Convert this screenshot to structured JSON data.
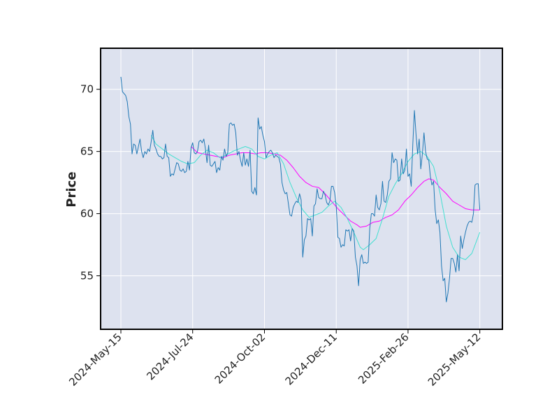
{
  "chart_data": {
    "type": "line",
    "title": "",
    "xlabel": "",
    "ylabel": "Price",
    "x_tick_labels": [
      "2024-May-15",
      "2024-Jul-24",
      "2024-Oct-02",
      "2024-Dec-11",
      "2025-Feb-26",
      "2025-May-12"
    ],
    "y_ticks": [
      55,
      60,
      65,
      70
    ],
    "ylim": [
      50.7,
      73.3
    ],
    "grid": true,
    "legend": "none",
    "colors": {
      "background": "#dde2ef",
      "grid": "#ffffff",
      "price": "#1f77b4",
      "ma_short": "#40e0d0",
      "ma_long": "#ff00ff"
    },
    "series": [
      {
        "key": "price",
        "values": [
          [
            0,
            71.0
          ],
          [
            1,
            69.8
          ],
          [
            3,
            69.5
          ],
          [
            4,
            69.0
          ],
          [
            5,
            67.8
          ],
          [
            6,
            67.2
          ],
          [
            7,
            64.8
          ],
          [
            8,
            65.6
          ],
          [
            9,
            65.5
          ],
          [
            10,
            64.8
          ],
          [
            11,
            65.4
          ],
          [
            12,
            66.0
          ],
          [
            13,
            65.0
          ],
          [
            14,
            64.5
          ],
          [
            15,
            65.0
          ],
          [
            16,
            64.8
          ],
          [
            17,
            65.2
          ],
          [
            18,
            65.0
          ],
          [
            19,
            65.8
          ],
          [
            20,
            66.7
          ],
          [
            21,
            65.5
          ],
          [
            22,
            65.2
          ],
          [
            23,
            64.8
          ],
          [
            24,
            64.6
          ],
          [
            25,
            64.6
          ],
          [
            26,
            64.4
          ],
          [
            27,
            64.5
          ],
          [
            28,
            65.6
          ],
          [
            29,
            64.6
          ],
          [
            30,
            64.5
          ],
          [
            31,
            63.0
          ],
          [
            32,
            63.2
          ],
          [
            33,
            63.1
          ],
          [
            34,
            63.6
          ],
          [
            35,
            64.1
          ],
          [
            36,
            64.0
          ],
          [
            37,
            63.5
          ],
          [
            38,
            63.4
          ],
          [
            39,
            63.6
          ],
          [
            40,
            63.3
          ],
          [
            41,
            63.4
          ],
          [
            42,
            64.2
          ],
          [
            43,
            63.5
          ],
          [
            44,
            65.3
          ],
          [
            45,
            65.7
          ],
          [
            46,
            64.9
          ],
          [
            47,
            64.8
          ],
          [
            48,
            65.0
          ],
          [
            49,
            65.8
          ],
          [
            50,
            65.9
          ],
          [
            51,
            65.7
          ],
          [
            52,
            66.0
          ],
          [
            53,
            65.2
          ],
          [
            54,
            64.1
          ],
          [
            55,
            65.5
          ],
          [
            56,
            63.9
          ],
          [
            57,
            63.8
          ],
          [
            58,
            64.0
          ],
          [
            59,
            64.2
          ],
          [
            60,
            63.3
          ],
          [
            61,
            63.7
          ],
          [
            62,
            63.5
          ],
          [
            63,
            64.6
          ],
          [
            64,
            64.3
          ],
          [
            65,
            65.2
          ],
          [
            66,
            64.6
          ],
          [
            67,
            64.9
          ],
          [
            68,
            67.2
          ],
          [
            69,
            67.3
          ],
          [
            70,
            67.1
          ],
          [
            71,
            67.2
          ],
          [
            72,
            66.5
          ],
          [
            73,
            64.7
          ],
          [
            74,
            65.0
          ],
          [
            75,
            64.3
          ],
          [
            76,
            63.8
          ],
          [
            77,
            64.9
          ],
          [
            78,
            63.9
          ],
          [
            79,
            64.4
          ],
          [
            80,
            63.8
          ],
          [
            81,
            65.1
          ],
          [
            82,
            61.8
          ],
          [
            83,
            61.6
          ],
          [
            84,
            62.1
          ],
          [
            85,
            61.5
          ],
          [
            86,
            67.7
          ],
          [
            87,
            66.8
          ],
          [
            88,
            67.0
          ],
          [
            89,
            66.3
          ],
          [
            90,
            65.8
          ],
          [
            91,
            64.5
          ],
          [
            92,
            64.8
          ],
          [
            93,
            65.0
          ],
          [
            94,
            65.1
          ],
          [
            95,
            64.9
          ],
          [
            96,
            64.5
          ],
          [
            97,
            64.7
          ],
          [
            98,
            64.6
          ],
          [
            99,
            64.5
          ],
          [
            100,
            64.0
          ],
          [
            101,
            62.5
          ],
          [
            102,
            61.9
          ],
          [
            103,
            61.6
          ],
          [
            104,
            61.7
          ],
          [
            105,
            60.8
          ],
          [
            106,
            59.9
          ],
          [
            107,
            59.8
          ],
          [
            108,
            60.5
          ],
          [
            109,
            60.8
          ],
          [
            110,
            61.0
          ],
          [
            111,
            60.9
          ],
          [
            112,
            61.6
          ],
          [
            113,
            61.1
          ],
          [
            114,
            56.5
          ],
          [
            115,
            57.9
          ],
          [
            116,
            58.2
          ],
          [
            117,
            59.6
          ],
          [
            118,
            59.5
          ],
          [
            119,
            59.6
          ],
          [
            120,
            58.2
          ],
          [
            121,
            60.6
          ],
          [
            122,
            60.8
          ],
          [
            123,
            62.0
          ],
          [
            124,
            61.3
          ],
          [
            125,
            61.2
          ],
          [
            126,
            61.2
          ],
          [
            127,
            61.8
          ],
          [
            128,
            61.5
          ],
          [
            129,
            60.9
          ],
          [
            130,
            60.7
          ],
          [
            131,
            61.0
          ],
          [
            132,
            62.2
          ],
          [
            133,
            62.2
          ],
          [
            134,
            61.7
          ],
          [
            135,
            60.6
          ],
          [
            136,
            58.1
          ],
          [
            137,
            58.0
          ],
          [
            138,
            57.3
          ],
          [
            139,
            57.5
          ],
          [
            140,
            57.4
          ],
          [
            141,
            58.7
          ],
          [
            142,
            58.6
          ],
          [
            143,
            58.7
          ],
          [
            144,
            57.8
          ],
          [
            145,
            58.8
          ],
          [
            146,
            58.6
          ],
          [
            147,
            56.5
          ],
          [
            148,
            55.8
          ],
          [
            149,
            54.2
          ],
          [
            150,
            56.3
          ],
          [
            151,
            56.7
          ],
          [
            152,
            56.0
          ],
          [
            153,
            56.1
          ],
          [
            154,
            56.0
          ],
          [
            155,
            56.1
          ],
          [
            156,
            58.8
          ],
          [
            157,
            60.0
          ],
          [
            158,
            60.0
          ],
          [
            159,
            59.8
          ],
          [
            160,
            61.5
          ],
          [
            161,
            60.5
          ],
          [
            162,
            60.3
          ],
          [
            163,
            60.8
          ],
          [
            164,
            62.6
          ],
          [
            165,
            61.0
          ],
          [
            166,
            60.9
          ],
          [
            167,
            61.5
          ],
          [
            168,
            62.6
          ],
          [
            169,
            62.8
          ],
          [
            170,
            64.9
          ],
          [
            171,
            64.1
          ],
          [
            172,
            64.4
          ],
          [
            173,
            64.3
          ],
          [
            174,
            62.6
          ],
          [
            175,
            62.7
          ],
          [
            176,
            64.4
          ],
          [
            177,
            63.2
          ],
          [
            178,
            63.5
          ],
          [
            179,
            65.2
          ],
          [
            180,
            63.0
          ],
          [
            181,
            63.2
          ],
          [
            182,
            62.2
          ],
          [
            183,
            65.6
          ],
          [
            184,
            68.3
          ],
          [
            185,
            66.4
          ],
          [
            186,
            64.8
          ],
          [
            187,
            66.0
          ],
          [
            188,
            63.6
          ],
          [
            189,
            64.8
          ],
          [
            190,
            66.5
          ],
          [
            191,
            65.0
          ],
          [
            192,
            64.4
          ],
          [
            193,
            64.3
          ],
          [
            194,
            63.0
          ],
          [
            195,
            62.3
          ],
          [
            196,
            62.6
          ],
          [
            197,
            60.3
          ],
          [
            198,
            59.2
          ],
          [
            199,
            59.5
          ],
          [
            200,
            58.5
          ],
          [
            201,
            55.8
          ],
          [
            202,
            54.6
          ],
          [
            203,
            54.8
          ],
          [
            204,
            52.9
          ],
          [
            205,
            53.6
          ],
          [
            206,
            54.8
          ],
          [
            207,
            56.4
          ],
          [
            208,
            56.4
          ],
          [
            209,
            56.0
          ],
          [
            210,
            55.3
          ],
          [
            211,
            56.7
          ],
          [
            212,
            55.4
          ],
          [
            213,
            58.2
          ],
          [
            214,
            57.2
          ],
          [
            215,
            57.9
          ],
          [
            216,
            58.5
          ],
          [
            217,
            59.0
          ],
          [
            218,
            59.3
          ],
          [
            219,
            59.4
          ],
          [
            220,
            59.3
          ],
          [
            221,
            60.0
          ],
          [
            222,
            62.3
          ],
          [
            223,
            62.4
          ],
          [
            224,
            62.4
          ],
          [
            225,
            60.3
          ]
        ]
      },
      {
        "key": "ma_short",
        "values": [
          [
            19,
            66.3
          ],
          [
            22,
            65.6
          ],
          [
            26,
            65.2
          ],
          [
            30,
            64.8
          ],
          [
            34,
            64.5
          ],
          [
            38,
            64.2
          ],
          [
            42,
            64.0
          ],
          [
            46,
            64.1
          ],
          [
            50,
            64.7
          ],
          [
            54,
            65.1
          ],
          [
            58,
            64.9
          ],
          [
            62,
            64.5
          ],
          [
            66,
            64.7
          ],
          [
            70,
            65.0
          ],
          [
            74,
            65.2
          ],
          [
            78,
            65.4
          ],
          [
            82,
            65.2
          ],
          [
            86,
            64.6
          ],
          [
            90,
            64.4
          ],
          [
            94,
            64.7
          ],
          [
            98,
            64.9
          ],
          [
            102,
            64.0
          ],
          [
            106,
            62.5
          ],
          [
            110,
            61.3
          ],
          [
            114,
            60.3
          ],
          [
            118,
            59.7
          ],
          [
            122,
            59.9
          ],
          [
            126,
            60.1
          ],
          [
            130,
            60.6
          ],
          [
            134,
            61.0
          ],
          [
            138,
            60.5
          ],
          [
            142,
            59.6
          ],
          [
            146,
            58.5
          ],
          [
            150,
            57.3
          ],
          [
            152,
            57.1
          ],
          [
            156,
            57.5
          ],
          [
            160,
            58.0
          ],
          [
            164,
            59.6
          ],
          [
            168,
            61.4
          ],
          [
            172,
            62.4
          ],
          [
            176,
            63.2
          ],
          [
            180,
            64.2
          ],
          [
            184,
            64.8
          ],
          [
            188,
            65.0
          ],
          [
            192,
            64.6
          ],
          [
            196,
            63.8
          ],
          [
            200,
            61.7
          ],
          [
            204,
            59.0
          ],
          [
            208,
            57.3
          ],
          [
            212,
            56.5
          ],
          [
            216,
            56.3
          ],
          [
            220,
            56.8
          ],
          [
            225,
            58.5
          ]
        ]
      },
      {
        "key": "ma_long",
        "values": [
          [
            44,
            65.4
          ],
          [
            48,
            64.9
          ],
          [
            52,
            64.8
          ],
          [
            56,
            64.7
          ],
          [
            60,
            64.6
          ],
          [
            64,
            64.5
          ],
          [
            68,
            64.7
          ],
          [
            72,
            64.8
          ],
          [
            76,
            64.9
          ],
          [
            80,
            64.9
          ],
          [
            84,
            64.8
          ],
          [
            88,
            64.9
          ],
          [
            92,
            64.9
          ],
          [
            96,
            64.8
          ],
          [
            100,
            64.7
          ],
          [
            104,
            64.3
          ],
          [
            108,
            63.7
          ],
          [
            112,
            63.0
          ],
          [
            116,
            62.5
          ],
          [
            120,
            62.2
          ],
          [
            124,
            62.1
          ],
          [
            128,
            61.6
          ],
          [
            132,
            61.0
          ],
          [
            136,
            60.4
          ],
          [
            140,
            59.9
          ],
          [
            144,
            59.4
          ],
          [
            148,
            59.1
          ],
          [
            150,
            58.9
          ],
          [
            154,
            59.0
          ],
          [
            158,
            59.3
          ],
          [
            162,
            59.4
          ],
          [
            166,
            59.7
          ],
          [
            170,
            59.9
          ],
          [
            174,
            60.3
          ],
          [
            178,
            61.0
          ],
          [
            182,
            61.5
          ],
          [
            186,
            62.1
          ],
          [
            190,
            62.6
          ],
          [
            193,
            62.8
          ],
          [
            196,
            62.7
          ],
          [
            200,
            62.1
          ],
          [
            204,
            61.6
          ],
          [
            208,
            61.0
          ],
          [
            212,
            60.7
          ],
          [
            216,
            60.4
          ],
          [
            220,
            60.3
          ],
          [
            225,
            60.3
          ]
        ]
      }
    ]
  }
}
